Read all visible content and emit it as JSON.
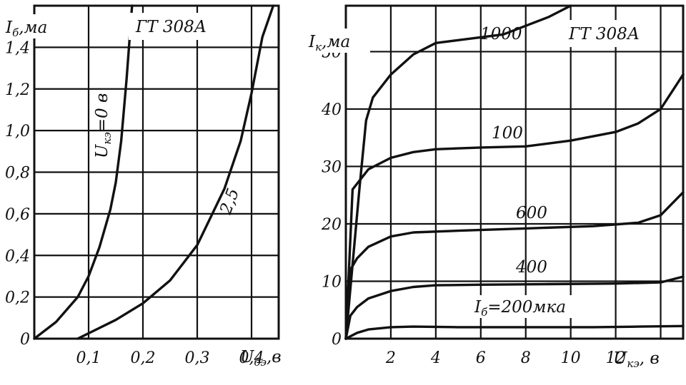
{
  "chart_data": [
    {
      "type": "line",
      "device_label": "ГТ 308А",
      "ylabel_main": "I",
      "ylabel_sub": "б",
      "ylabel_unit": ",ма",
      "xlabel_main": "U",
      "xlabel_sub": "бэ",
      "xlabel_unit": ",в",
      "xlim": [
        0,
        0.45
      ],
      "ylim": [
        0,
        1.6
      ],
      "x_ticks": [
        "0,1",
        "0,2",
        "0,3",
        "0,4"
      ],
      "y_ticks": [
        "0",
        "0,2",
        "0,4",
        "0,6",
        "0,8",
        "1,0",
        "1,2",
        "1,4"
      ],
      "grid": true,
      "series": [
        {
          "name": "U",
          "name_sub": "кэ",
          "name_rest": "=0 в",
          "x": [
            0.0,
            0.04,
            0.08,
            0.1,
            0.12,
            0.14,
            0.15,
            0.16,
            0.17,
            0.18
          ],
          "y": [
            0.0,
            0.08,
            0.2,
            0.3,
            0.44,
            0.62,
            0.75,
            0.95,
            1.25,
            1.62
          ]
        },
        {
          "name": "2,5",
          "x": [
            0.08,
            0.15,
            0.2,
            0.25,
            0.3,
            0.35,
            0.38,
            0.4,
            0.42,
            0.44
          ],
          "y": [
            0.0,
            0.09,
            0.17,
            0.28,
            0.45,
            0.72,
            0.95,
            1.18,
            1.45,
            1.72
          ]
        }
      ]
    },
    {
      "type": "line",
      "device_label": "ГТ 308А",
      "ylabel_main": "I",
      "ylabel_sub": "к",
      "ylabel_unit": ",ма",
      "xlabel_main": "U",
      "xlabel_sub": "кэ",
      "xlabel_unit": ", в",
      "xlim": [
        0,
        15
      ],
      "ylim": [
        0,
        58
      ],
      "x_ticks": [
        "2",
        "4",
        "6",
        "8",
        "10",
        "12"
      ],
      "y_ticks": [
        "0",
        "10",
        "20",
        "30",
        "40",
        "50"
      ],
      "grid": true,
      "series": [
        {
          "name": "I",
          "name_sub": "б",
          "name_rest": "=200мка",
          "x": [
            0,
            0.5,
            1,
            2,
            3,
            5,
            8,
            11,
            13,
            15
          ],
          "y": [
            0,
            1.0,
            1.6,
            2.0,
            2.1,
            2.0,
            2.0,
            2.0,
            2.1,
            2.2
          ]
        },
        {
          "name": "400",
          "x": [
            0,
            0.2,
            0.5,
            1,
            2,
            3,
            4,
            6,
            9,
            12,
            14,
            15
          ],
          "y": [
            0,
            4,
            5.5,
            7,
            8.3,
            9,
            9.3,
            9.4,
            9.5,
            9.6,
            9.8,
            10.8
          ]
        },
        {
          "name": "600",
          "x": [
            0,
            0.2,
            0.5,
            1,
            2,
            3,
            5,
            8,
            11,
            13,
            14,
            15
          ],
          "y": [
            0,
            12,
            14,
            16,
            17.8,
            18.5,
            18.8,
            19.2,
            19.6,
            20.2,
            21.5,
            25.5
          ]
        },
        {
          "name": "100",
          "x": [
            0,
            0.3,
            0.6,
            1,
            2,
            3,
            4,
            6,
            8,
            10,
            12,
            13,
            14,
            15
          ],
          "y": [
            0,
            26,
            27.5,
            29.5,
            31.5,
            32.5,
            33,
            33.3,
            33.5,
            34.5,
            36,
            37.5,
            40,
            46
          ]
        },
        {
          "name": "1000",
          "x": [
            0,
            0.6,
            0.9,
            1.2,
            2,
            3,
            4,
            5,
            6,
            7,
            8,
            9,
            10
          ],
          "y": [
            0,
            26,
            38,
            42,
            46,
            49.5,
            51.5,
            52,
            52.5,
            53,
            54.5,
            56,
            58
          ]
        }
      ]
    }
  ]
}
